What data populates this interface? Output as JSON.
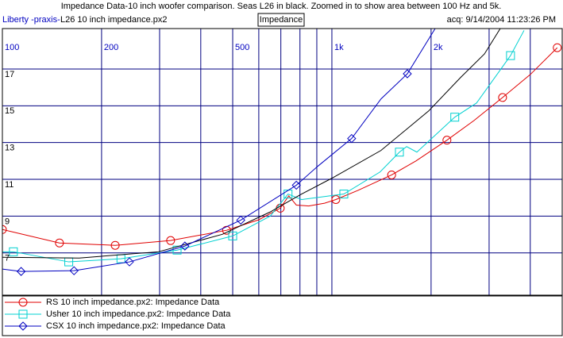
{
  "header": {
    "program": "Liberty -praxis-",
    "file": "L26 10 inch impedance.px2",
    "mode": "Impedance",
    "acq": "acq: 9/14/2004 11:23:26 PM"
  },
  "chart_data": {
    "type": "line",
    "title": "Impedance Data-10 inch woofer comparison. Seas L26 in black. Zoomed in to show area between 100 Hz and 5k.",
    "xscale": "log",
    "xlim": [
      100,
      5000
    ],
    "xticks": [
      100,
      200,
      500,
      {
        "value": 1000,
        "label": "1k"
      },
      {
        "value": 2000,
        "label": "2k"
      }
    ],
    "xminor": [
      300,
      400,
      600,
      700,
      800,
      900,
      3000,
      4000
    ],
    "ylim": [
      4.7,
      19.2
    ],
    "yticks": [
      7,
      9,
      11,
      13,
      15,
      17
    ],
    "grid": true,
    "series": [
      {
        "name": "RS 10 inch impedance.px2:  Impedance Data",
        "color": "#e00000",
        "marker": "circle",
        "x": [
          100,
          149,
          220,
          324,
          479,
          600,
          697,
          740,
          780,
          850,
          950,
          1028,
          1200,
          1518,
          1800,
          2234,
          2700,
          3296,
          4000,
          4830
        ],
        "values": [
          8.27,
          7.54,
          7.41,
          7.67,
          8.23,
          8.8,
          9.43,
          10.1,
          9.6,
          9.55,
          9.7,
          9.9,
          10.4,
          11.24,
          12.0,
          13.13,
          14.2,
          15.45,
          16.7,
          18.16
        ],
        "markers": {
          "x": [
            100,
            149,
            220,
            324,
            479,
            697,
            1028,
            1518,
            2234,
            3296,
            4830
          ],
          "values": [
            8.27,
            7.54,
            7.41,
            7.67,
            8.23,
            9.43,
            9.9,
            11.24,
            13.13,
            15.45,
            18.16
          ]
        }
      },
      {
        "name": "Usher 10 inch impedance.px2:  Impedance Data",
        "color": "#00d0d0",
        "marker": "square",
        "x": [
          100,
          108,
          159,
          229,
          339,
          500,
          650,
          736,
          809,
          1087,
          1400,
          1603,
          1686,
          1811,
          2360,
          2748,
          3484,
          3830
        ],
        "values": [
          7.06,
          7.06,
          6.51,
          6.68,
          7.15,
          7.92,
          9.0,
          10.2,
          9.9,
          10.2,
          11.4,
          12.48,
          12.78,
          12.48,
          14.38,
          15.15,
          17.73,
          19.1
        ],
        "markers": {
          "x": [
            108,
            159,
            229,
            339,
            500,
            736,
            1087,
            1603,
            2360,
            3484
          ],
          "values": [
            7.06,
            6.51,
            6.68,
            7.15,
            7.92,
            10.2,
            10.2,
            12.48,
            14.38,
            17.73
          ]
        }
      },
      {
        "name": null,
        "color": "#000000",
        "marker": null,
        "x": [
          100,
          171,
          298,
          465,
          649,
          809,
          1000,
          1409,
          1967,
          2455,
          2904,
          3243
        ],
        "values": [
          6.76,
          6.72,
          7.06,
          8.01,
          9.22,
          10.2,
          11.06,
          12.57,
          14.72,
          16.53,
          17.82,
          19.2
        ]
      },
      {
        "name": "CSX 10 inch impedance.px2:  Impedance Data",
        "color": "#0000c0",
        "marker": "diamond",
        "x": [
          100,
          114,
          165,
          243,
          358,
          529,
          780,
          906,
          1148,
          1409,
          1694,
          2056
        ],
        "values": [
          6.12,
          5.99,
          6.03,
          6.51,
          7.37,
          8.78,
          10.68,
          11.71,
          13.22,
          15.37,
          16.74,
          19.19
        ],
        "markers": {
          "x": [
            114,
            165,
            243,
            358,
            529,
            780,
            1148,
            1694
          ],
          "values": [
            5.99,
            6.03,
            6.51,
            7.37,
            8.78,
            10.68,
            13.22,
            16.74
          ]
        }
      }
    ]
  }
}
